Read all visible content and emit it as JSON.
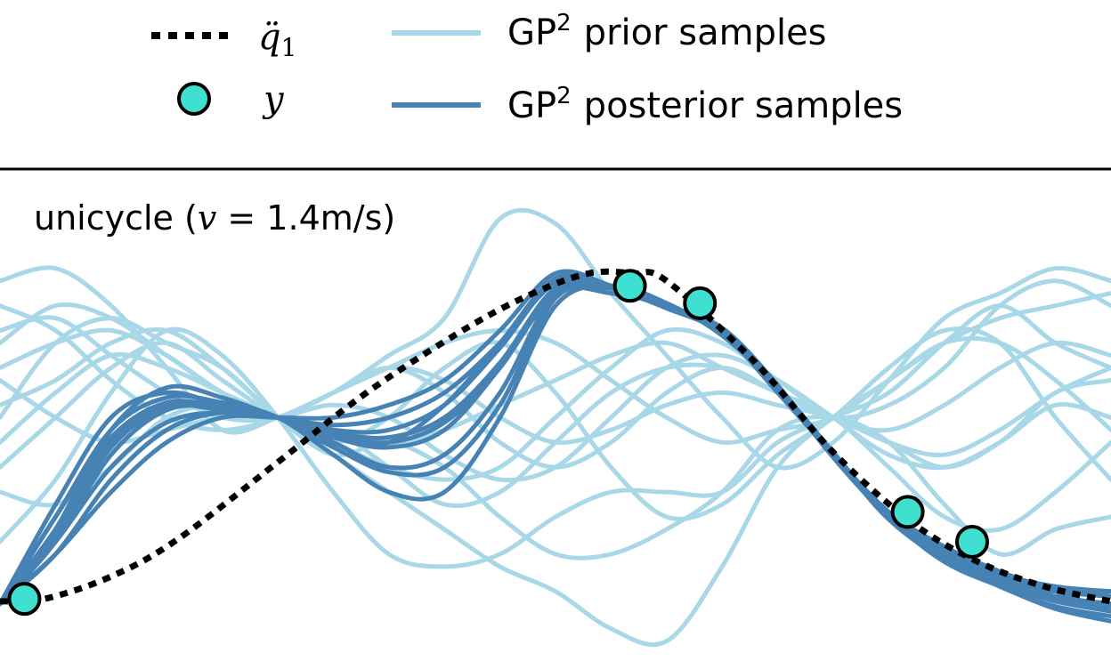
{
  "legend": {
    "entries": [
      {
        "label_main": "q̈",
        "label_sub": "1",
        "style": "dotted-black"
      },
      {
        "label_main": "y",
        "style": "marker"
      },
      {
        "label_main": "GP",
        "label_sup": "2",
        "label_rest": "prior samples",
        "style": "line-light"
      },
      {
        "label_main": "GP",
        "label_sup": "2",
        "label_rest": "posterior samples",
        "style": "line-dark"
      }
    ],
    "placement": "top, above plot"
  },
  "annotation": {
    "prefix": "unicycle (",
    "var": "v",
    "suffix": " = 1.4m/s)"
  },
  "colors": {
    "prior": "#a8d8e8",
    "posterior": "#4682b4",
    "true_signal": "#000000",
    "marker_fill": "#40e0d0",
    "marker_edge": "#000000"
  },
  "chart_data": {
    "type": "line",
    "x_range": [
      0,
      1
    ],
    "y_range": [
      -0.98,
      1
    ],
    "axes_visible": false,
    "grid": false,
    "true_signal": {
      "x": [
        0.0,
        0.04,
        0.1,
        0.16,
        0.25,
        0.33,
        0.42,
        0.48,
        0.53,
        0.57,
        0.6,
        0.68,
        0.75,
        0.82,
        0.88,
        0.94,
        1.0
      ],
      "y": [
        -0.74,
        -0.73,
        -0.64,
        -0.49,
        -0.18,
        0.1,
        0.36,
        0.5,
        0.58,
        0.58,
        0.55,
        0.22,
        -0.14,
        -0.42,
        -0.58,
        -0.68,
        -0.74
      ]
    },
    "observations": {
      "x": [
        0.022,
        0.567,
        0.63,
        0.817,
        0.875
      ],
      "y": [
        -0.73,
        0.53,
        0.46,
        -0.38,
        -0.5
      ]
    },
    "prior_samples": [
      {
        "y": [
          0.55,
          0.6,
          0.45,
          0.2,
          -0.05,
          0.0,
          0.1,
          0.25,
          0.4,
          0.8,
          0.78,
          0.5,
          0.25,
          0.0,
          -0.2,
          -0.1,
          0.15,
          0.4,
          0.5,
          0.6,
          0.55
        ]
      },
      {
        "y": [
          0.0,
          0.3,
          0.4,
          0.3,
          0.2,
          0.0,
          -0.15,
          -0.1,
          -0.2,
          -0.4,
          -0.55,
          -0.55,
          -0.45,
          -0.3,
          -0.05,
          0.0,
          -0.1,
          -0.35,
          -0.55,
          -0.45,
          -0.4
        ]
      },
      {
        "y": [
          -0.5,
          -0.25,
          0.1,
          0.35,
          0.25,
          0.0,
          -0.3,
          -0.55,
          -0.6,
          -0.55,
          -0.4,
          -0.3,
          -0.3,
          -0.3,
          -0.1,
          0.0,
          0.1,
          0.3,
          0.45,
          0.3,
          0.2
        ]
      },
      {
        "y": [
          0.35,
          0.4,
          0.25,
          0.1,
          0.0,
          0.0,
          0.1,
          0.2,
          0.1,
          -0.1,
          -0.2,
          -0.1,
          0.1,
          0.2,
          0.1,
          0.0,
          -0.1,
          -0.2,
          -0.1,
          0.1,
          0.15
        ]
      },
      {
        "y": [
          -0.2,
          0.0,
          0.2,
          0.3,
          0.15,
          0.0,
          -0.1,
          0.0,
          0.2,
          0.3,
          0.1,
          -0.2,
          -0.4,
          -0.35,
          -0.15,
          0.0,
          0.2,
          0.35,
          0.3,
          0.0,
          -0.25
        ]
      },
      {
        "y": [
          0.2,
          0.3,
          0.35,
          0.25,
          0.1,
          0.0,
          -0.05,
          -0.2,
          -0.35,
          -0.3,
          -0.1,
          0.1,
          0.2,
          0.2,
          0.1,
          0.0,
          -0.2,
          -0.4,
          -0.45,
          -0.3,
          -0.1
        ]
      },
      {
        "y": [
          0.05,
          0.15,
          0.3,
          0.35,
          0.2,
          0.0,
          -0.15,
          -0.3,
          -0.45,
          -0.6,
          -0.7,
          -0.85,
          -0.9,
          -0.6,
          -0.2,
          0.0,
          0.15,
          0.3,
          0.4,
          0.45,
          0.5
        ]
      },
      {
        "y": [
          -0.3,
          -0.35,
          -0.2,
          0.0,
          0.05,
          0.0,
          0.1,
          0.2,
          0.15,
          0.0,
          -0.1,
          -0.05,
          0.05,
          0.1,
          0.05,
          0.0,
          -0.1,
          -0.15,
          -0.05,
          0.1,
          0.2
        ]
      },
      {
        "y": [
          0.45,
          0.35,
          0.15,
          0.0,
          -0.05,
          0.0,
          0.1,
          0.2,
          0.3,
          0.35,
          0.3,
          0.15,
          0.0,
          -0.1,
          -0.05,
          0.0,
          0.15,
          0.3,
          0.3,
          0.15,
          -0.05
        ]
      },
      {
        "y": [
          -0.1,
          0.1,
          0.25,
          0.2,
          0.1,
          0.0,
          -0.1,
          -0.2,
          -0.25,
          -0.2,
          0.0,
          0.2,
          0.35,
          0.3,
          0.15,
          0.0,
          -0.05,
          0.05,
          0.2,
          0.3,
          0.25
        ]
      },
      {
        "y": [
          0.15,
          0.0,
          -0.1,
          -0.05,
          0.0,
          0.0,
          0.05,
          0.0,
          -0.15,
          -0.25,
          -0.2,
          0.0,
          0.2,
          0.25,
          0.15,
          0.0,
          -0.15,
          -0.2,
          -0.1,
          0.05,
          0.0
        ]
      },
      {
        "y": [
          0.3,
          0.45,
          0.4,
          0.25,
          0.1,
          0.0,
          -0.05,
          -0.1,
          -0.05,
          0.05,
          0.15,
          0.25,
          0.3,
          0.2,
          0.1,
          0.0,
          0.05,
          0.2,
          0.45,
          0.55,
          0.45
        ]
      }
    ],
    "posterior_samples": [
      {
        "y": [
          -0.75,
          -0.45,
          -0.1,
          0.05,
          0.05,
          0.0,
          -0.08,
          -0.12,
          -0.05,
          0.2,
          0.5,
          0.5,
          0.45,
          0.35,
          0.12,
          -0.16,
          -0.4,
          -0.58,
          -0.66,
          -0.72,
          -0.75
        ]
      },
      {
        "y": [
          -0.75,
          -0.5,
          -0.2,
          -0.02,
          0.02,
          0.0,
          -0.05,
          -0.05,
          0.05,
          0.28,
          0.55,
          0.53,
          0.45,
          0.35,
          0.12,
          -0.15,
          -0.4,
          -0.55,
          -0.65,
          -0.7,
          -0.72
        ]
      },
      {
        "y": [
          -0.75,
          -0.35,
          0.0,
          0.1,
          0.05,
          0.0,
          -0.1,
          -0.2,
          -0.15,
          0.1,
          0.5,
          0.53,
          0.44,
          0.34,
          0.1,
          -0.15,
          -0.38,
          -0.52,
          -0.62,
          -0.7,
          -0.78
        ]
      },
      {
        "y": [
          -0.75,
          -0.55,
          -0.3,
          -0.1,
          0.0,
          0.0,
          0.0,
          0.05,
          0.15,
          0.35,
          0.58,
          0.53,
          0.45,
          0.36,
          0.13,
          -0.16,
          -0.4,
          -0.56,
          -0.68,
          -0.76,
          -0.8
        ]
      },
      {
        "y": [
          -0.75,
          -0.4,
          -0.05,
          0.08,
          0.06,
          0.0,
          -0.15,
          -0.3,
          -0.3,
          0.0,
          0.45,
          0.53,
          0.46,
          0.33,
          0.12,
          -0.14,
          -0.4,
          -0.57,
          -0.66,
          -0.7,
          -0.7
        ]
      },
      {
        "y": [
          -0.75,
          -0.5,
          -0.15,
          0.03,
          0.04,
          0.0,
          -0.06,
          -0.08,
          0.0,
          0.22,
          0.52,
          0.53,
          0.45,
          0.35,
          0.11,
          -0.15,
          -0.41,
          -0.57,
          -0.67,
          -0.74,
          -0.78
        ]
      },
      {
        "y": [
          -0.75,
          -0.45,
          -0.05,
          0.12,
          0.08,
          0.0,
          -0.08,
          -0.1,
          0.05,
          0.3,
          0.56,
          0.52,
          0.44,
          0.34,
          0.12,
          -0.16,
          -0.39,
          -0.55,
          -0.64,
          -0.69,
          -0.72
        ]
      },
      {
        "y": [
          -0.75,
          -0.55,
          -0.25,
          -0.05,
          0.02,
          0.0,
          -0.03,
          0.0,
          0.1,
          0.3,
          0.54,
          0.53,
          0.45,
          0.35,
          0.12,
          -0.15,
          -0.4,
          -0.56,
          -0.66,
          -0.73,
          -0.76
        ]
      },
      {
        "y": [
          -0.75,
          -0.4,
          -0.08,
          0.06,
          0.04,
          0.0,
          -0.12,
          -0.22,
          -0.2,
          0.05,
          0.48,
          0.52,
          0.45,
          0.34,
          0.11,
          -0.15,
          -0.4,
          -0.58,
          -0.68,
          -0.77,
          -0.82
        ]
      },
      {
        "y": [
          -0.75,
          -0.48,
          -0.12,
          0.04,
          0.03,
          0.0,
          -0.07,
          -0.1,
          -0.02,
          0.2,
          0.52,
          0.53,
          0.45,
          0.35,
          0.12,
          -0.15,
          -0.39,
          -0.54,
          -0.63,
          -0.68,
          -0.7
        ]
      }
    ]
  }
}
